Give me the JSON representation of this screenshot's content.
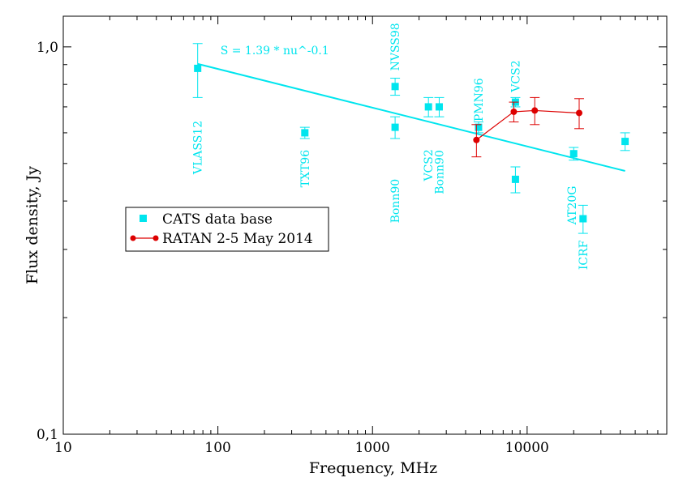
{
  "chart_data": {
    "type": "scatter",
    "xlabel": "Frequency, MHz",
    "ylabel": "Flux density,  Jy",
    "x_scale": "log",
    "y_scale": "log",
    "xlim": [
      10,
      80000
    ],
    "ylim": [
      0.1,
      1.2
    ],
    "x_ticks": [
      "10",
      "100",
      "1000",
      "10000"
    ],
    "y_ticks": [
      "0,1",
      "1,0"
    ],
    "grid": false,
    "legend_position": "center-left",
    "colors": {
      "cats": "#00e5ee",
      "ratan": "#dd0000"
    },
    "series": [
      {
        "name": "CATS data base",
        "marker": "square",
        "points": [
          {
            "x": 74,
            "y": 0.88,
            "err": 0.14
          },
          {
            "x": 365,
            "y": 0.6,
            "err": 0.02
          },
          {
            "x": 1400,
            "y": 0.79,
            "err": 0.04
          },
          {
            "x": 1400,
            "y": 0.62,
            "err": 0.04
          },
          {
            "x": 2300,
            "y": 0.7,
            "err": 0.04
          },
          {
            "x": 2700,
            "y": 0.7,
            "err": 0.04
          },
          {
            "x": 4850,
            "y": 0.62,
            "err": 0.02
          },
          {
            "x": 8400,
            "y": 0.72,
            "err": 0.02
          },
          {
            "x": 8400,
            "y": 0.455,
            "err": 0.035
          },
          {
            "x": 20000,
            "y": 0.53,
            "err": 0.02
          },
          {
            "x": 23000,
            "y": 0.36,
            "err": 0.03
          },
          {
            "x": 43000,
            "y": 0.57,
            "err": 0.03
          }
        ]
      },
      {
        "name": "RATAN 2-5 May 2014",
        "marker": "circle",
        "connect": true,
        "points": [
          {
            "x": 4700,
            "y": 0.575,
            "err": 0.055
          },
          {
            "x": 8200,
            "y": 0.68,
            "err": 0.04
          },
          {
            "x": 11200,
            "y": 0.685,
            "err": 0.055
          },
          {
            "x": 21700,
            "y": 0.675,
            "err": 0.06
          }
        ]
      }
    ],
    "fit": {
      "label": "S = 1.39 * nu^-0.1",
      "a": 1.39,
      "b": -0.1,
      "x_range": [
        74,
        43000
      ]
    },
    "annotations": [
      {
        "text": "VLASS12",
        "x": 74,
        "y": 0.55
      },
      {
        "text": "TXT96",
        "x": 365,
        "y": 0.485
      },
      {
        "text": "Bonn90",
        "x": 1400,
        "y": 0.4
      },
      {
        "text": "NVSS98",
        "x": 1400,
        "y": 1.0
      },
      {
        "text": "VCS2",
        "x": 2300,
        "y": 0.495
      },
      {
        "text": "Bonn90",
        "x": 2700,
        "y": 0.475
      },
      {
        "text": "PMN96",
        "x": 4850,
        "y": 0.73
      },
      {
        "text": "VCS2",
        "x": 8400,
        "y": 0.84
      },
      {
        "text": "AT20G",
        "x": 19500,
        "y": 0.39
      },
      {
        "text": "ICRF",
        "x": 23000,
        "y": 0.29
      }
    ]
  }
}
